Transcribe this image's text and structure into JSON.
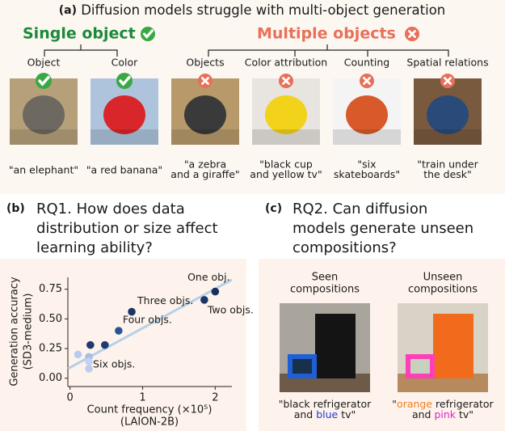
{
  "panel_a": {
    "label": "(a)",
    "title": "Diffusion models struggle with multi-object generation",
    "single": {
      "heading": "Single object",
      "color": "#1a8a3a",
      "items": [
        {
          "label": "Object",
          "caption": [
            "\"an elephant\""
          ]
        },
        {
          "label": "Color",
          "caption": [
            "\"a red banana\""
          ]
        }
      ]
    },
    "multiple": {
      "heading": "Multiple objects",
      "color": "#e8705a",
      "items": [
        {
          "label": "Objects",
          "caption": [
            "\"a zebra",
            "and a giraffe\""
          ]
        },
        {
          "label": "Color attribution",
          "caption": [
            "\"black cup",
            "and yellow tv\""
          ]
        },
        {
          "label": "Counting",
          "caption": [
            "\"six",
            "skateboards\""
          ]
        },
        {
          "label": "Spatial relations",
          "caption": [
            "\"train under",
            "the desk\""
          ]
        }
      ]
    }
  },
  "panel_b": {
    "label": "(b)",
    "question": [
      "RQ1. How does data",
      "distribution or size affect",
      "learning ability?"
    ]
  },
  "chart_data": {
    "type": "scatter",
    "x": [
      0.11,
      0.26,
      0.26,
      0.26,
      0.28,
      0.48,
      0.67,
      0.85,
      1.85,
      2.0
    ],
    "values": [
      0.2,
      0.18,
      0.14,
      0.08,
      0.28,
      0.28,
      0.4,
      0.56,
      0.66,
      0.73
    ],
    "colors": [
      "#b9ccee",
      "#a7bde6",
      "#c3d3f0",
      "#bccdee",
      "#1f3a6e",
      "#1f3a6e",
      "#2a5395",
      "#1c3566",
      "#1c3566",
      "#18305e"
    ],
    "point_labels": [
      null,
      null,
      "Six objs.",
      null,
      null,
      null,
      "Four objs.",
      "Three objs.",
      "Two objs.",
      "One obj."
    ],
    "trendline": {
      "x": [
        -0.03,
        2.23
      ],
      "y": [
        0.08,
        0.83
      ],
      "color": "#a9cbe8"
    },
    "xlabel": [
      "Count frequency (×10⁵)",
      "(LAION-2B)"
    ],
    "ylabel": [
      "Generation accuracy",
      "(SD3-medium)"
    ],
    "xlim": [
      -0.03,
      2.23
    ],
    "ylim": [
      -0.07,
      0.85
    ],
    "xticks": [
      0,
      1,
      2
    ],
    "yticks": [
      {
        "value": 0,
        "label": "0.00"
      },
      {
        "value": 0.25,
        "label": "0.25"
      },
      {
        "value": 0.5,
        "label": "0.50"
      },
      {
        "value": 0.75,
        "label": "0.75"
      }
    ]
  },
  "panel_c": {
    "label": "(c)",
    "question": [
      "RQ2. Can diffusion",
      "models generate unseen",
      "compositions?"
    ],
    "examples": [
      {
        "heading": [
          "Seen",
          "compositions"
        ],
        "caption": [
          [
            {
              "text": "\"black refrigerator",
              "color": "#1a1a1a"
            }
          ],
          [
            {
              "text": "and ",
              "color": "#1a1a1a"
            },
            {
              "text": "blue",
              "color": "#1f3ad6"
            },
            {
              "text": " tv\"",
              "color": "#1a1a1a"
            }
          ]
        ]
      },
      {
        "heading": [
          "Unseen",
          "compositions"
        ],
        "caption": [
          [
            {
              "text": "\"",
              "color": "#1a1a1a"
            },
            {
              "text": "orange",
              "color": "#f08020"
            },
            {
              "text": " refrigerator",
              "color": "#1a1a1a"
            }
          ],
          [
            {
              "text": "and ",
              "color": "#1a1a1a"
            },
            {
              "text": "pink",
              "color": "#e020d0"
            },
            {
              "text": " tv\"",
              "color": "#1a1a1a"
            }
          ]
        ]
      }
    ]
  }
}
